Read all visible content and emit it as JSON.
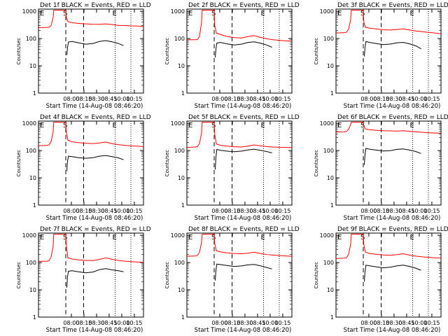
{
  "page": {
    "background": "#ffffff",
    "axis_color": "#000000"
  },
  "shared": {
    "xlabel": "Start Time (14-Aug-08 08:46:20)",
    "ylabel": "Counts/sec",
    "x_tick_labels": [
      "08:00",
      "08:15",
      "08:30",
      "08:45",
      "10:00",
      "10:15"
    ],
    "y_tick_labels": [
      "1",
      "10",
      "100",
      "1000"
    ],
    "marker_s": "S",
    "marker_e": "E",
    "y_scale": "log",
    "ylim": [
      1,
      1200
    ],
    "xlim": [
      0,
      100
    ],
    "red_color": "#ff0000",
    "black_color": "#000000"
  },
  "chart_data": [
    {
      "type": "line",
      "title": "Det 1f BLACK = Events, RED = LLD",
      "series": [
        {
          "color": "#ff0000",
          "x": [
            0,
            8,
            10,
            12,
            14,
            14.5,
            26,
            26.5,
            28,
            32,
            38,
            45,
            52,
            58,
            64,
            70,
            76,
            82,
            88,
            94,
            100
          ],
          "y": [
            250,
            255,
            260,
            300,
            600,
            1100,
            1100,
            600,
            420,
            380,
            360,
            345,
            335,
            330,
            345,
            325,
            305,
            300,
            290,
            285,
            275
          ]
        },
        {
          "color": "#000000",
          "x": [
            27,
            27.6,
            28.5,
            32,
            38,
            45,
            52,
            58,
            64,
            70,
            76,
            81
          ],
          "y": [
            25,
            45,
            75,
            78,
            70,
            62,
            66,
            78,
            84,
            76,
            66,
            55
          ]
        }
      ]
    },
    {
      "type": "line",
      "title": "Det 2f BLACK = Events, RED = LLD",
      "series": [
        {
          "color": "#ff0000",
          "x": [
            0,
            8,
            10,
            12,
            14,
            14.5,
            26,
            26.5,
            28,
            32,
            38,
            45,
            52,
            58,
            64,
            70,
            76,
            82,
            88,
            94,
            100
          ],
          "y": [
            90,
            90,
            92,
            120,
            400,
            1100,
            1100,
            300,
            160,
            140,
            120,
            108,
            105,
            118,
            128,
            110,
            98,
            90,
            86,
            82,
            80
          ]
        },
        {
          "color": "#000000",
          "x": [
            27,
            27.6,
            28.5,
            32,
            38,
            45,
            52,
            58,
            64,
            70,
            76,
            81
          ],
          "y": [
            20,
            40,
            68,
            72,
            64,
            58,
            62,
            72,
            76,
            68,
            58,
            48
          ]
        }
      ]
    },
    {
      "type": "line",
      "title": "Det 3f BLACK = Events, RED = LLD",
      "series": [
        {
          "color": "#ff0000",
          "x": [
            0,
            8,
            10,
            12,
            14,
            14.5,
            26,
            26.5,
            28,
            32,
            38,
            45,
            52,
            58,
            64,
            70,
            76,
            82,
            88,
            94,
            100
          ],
          "y": [
            160,
            165,
            170,
            220,
            500,
            1100,
            1100,
            400,
            260,
            240,
            225,
            210,
            205,
            215,
            225,
            205,
            190,
            178,
            168,
            160,
            150
          ]
        },
        {
          "color": "#000000",
          "x": [
            27,
            27.6,
            28.5,
            32,
            38,
            45,
            52,
            58,
            64,
            70,
            76,
            81
          ],
          "y": [
            22,
            45,
            78,
            72,
            66,
            60,
            63,
            70,
            72,
            64,
            54,
            42
          ]
        }
      ]
    },
    {
      "type": "line",
      "title": "Det 4f BLACK = Events, RED = LLD",
      "series": [
        {
          "color": "#ff0000",
          "x": [
            0,
            8,
            10,
            12,
            14,
            14.5,
            26,
            26.5,
            28,
            32,
            38,
            45,
            52,
            58,
            64,
            70,
            76,
            82,
            88,
            94,
            100
          ],
          "y": [
            150,
            155,
            160,
            210,
            500,
            1100,
            1100,
            500,
            240,
            210,
            195,
            185,
            180,
            190,
            205,
            180,
            165,
            155,
            148,
            145,
            140
          ]
        },
        {
          "color": "#000000",
          "x": [
            27,
            27.6,
            28.5,
            32,
            38,
            45,
            52,
            58,
            64,
            70,
            76,
            81
          ],
          "y": [
            18,
            40,
            62,
            60,
            55,
            52,
            55,
            62,
            66,
            60,
            54,
            46
          ]
        }
      ]
    },
    {
      "type": "line",
      "title": "Det 5f BLACK = Events, RED = LLD",
      "series": [
        {
          "color": "#ff0000",
          "x": [
            0,
            8,
            10,
            12,
            14,
            14.5,
            26,
            26.5,
            28,
            32,
            38,
            45,
            52,
            58,
            64,
            70,
            76,
            82,
            88,
            94,
            100
          ],
          "y": [
            130,
            135,
            140,
            180,
            450,
            1100,
            1100,
            400,
            175,
            155,
            145,
            138,
            135,
            145,
            160,
            150,
            140,
            135,
            132,
            130,
            128
          ]
        },
        {
          "color": "#000000",
          "x": [
            27,
            27.6,
            28.5,
            32,
            38,
            45,
            52,
            58,
            64,
            70,
            76,
            81
          ],
          "y": [
            20,
            55,
            110,
            102,
            95,
            90,
            95,
            105,
            112,
            102,
            92,
            82
          ]
        }
      ]
    },
    {
      "type": "line",
      "title": "Det 6f BLACK = Events, RED = LLD",
      "series": [
        {
          "color": "#ff0000",
          "x": [
            0,
            8,
            10,
            12,
            14,
            14.5,
            26,
            26.5,
            28,
            32,
            38,
            45,
            52,
            58,
            64,
            70,
            76,
            82,
            88,
            94,
            100
          ],
          "y": [
            480,
            490,
            500,
            600,
            900,
            1100,
            1100,
            800,
            620,
            580,
            555,
            535,
            525,
            520,
            530,
            505,
            485,
            465,
            450,
            440,
            430
          ]
        },
        {
          "color": "#000000",
          "x": [
            27,
            27.6,
            28.5,
            32,
            38,
            45,
            52,
            58,
            64,
            70,
            76,
            81
          ],
          "y": [
            30,
            70,
            120,
            112,
            104,
            96,
            100,
            110,
            114,
            104,
            92,
            78
          ]
        }
      ]
    },
    {
      "type": "line",
      "title": "Det 7f BLACK = Events, RED = LLD",
      "series": [
        {
          "color": "#ff0000",
          "x": [
            0,
            8,
            10,
            12,
            14,
            14.5,
            26,
            26.5,
            28,
            32,
            38,
            45,
            52,
            58,
            64,
            70,
            76,
            82,
            88,
            94,
            100
          ],
          "y": [
            110,
            112,
            115,
            160,
            400,
            1100,
            1100,
            400,
            150,
            135,
            125,
            120,
            118,
            130,
            148,
            132,
            120,
            112,
            108,
            105,
            102
          ]
        },
        {
          "color": "#000000",
          "x": [
            27,
            27.6,
            28.5,
            32,
            38,
            45,
            52,
            58,
            64,
            70,
            76,
            81
          ],
          "y": [
            12,
            30,
            48,
            50,
            46,
            42,
            45,
            55,
            60,
            54,
            50,
            46
          ]
        }
      ]
    },
    {
      "type": "line",
      "title": "Det 8f BLACK = Events, RED = LLD",
      "series": [
        {
          "color": "#ff0000",
          "x": [
            0,
            8,
            10,
            12,
            14,
            14.5,
            26,
            26.5,
            28,
            32,
            38,
            45,
            52,
            58,
            64,
            70,
            76,
            82,
            88,
            94,
            100
          ],
          "y": [
            170,
            175,
            180,
            240,
            550,
            1100,
            1100,
            500,
            270,
            245,
            228,
            215,
            210,
            222,
            238,
            215,
            198,
            188,
            180,
            175,
            170
          ]
        },
        {
          "color": "#000000",
          "x": [
            27,
            27.6,
            28.5,
            32,
            38,
            45,
            52,
            58,
            64,
            70,
            76,
            81
          ],
          "y": [
            22,
            50,
            88,
            84,
            78,
            72,
            75,
            82,
            85,
            76,
            66,
            58
          ]
        }
      ]
    },
    {
      "type": "line",
      "title": "Det 9f BLACK = Events, RED = LLD",
      "series": [
        {
          "color": "#ff0000",
          "x": [
            0,
            8,
            10,
            12,
            14,
            14.5,
            26,
            26.5,
            28,
            32,
            38,
            45,
            52,
            58,
            64,
            70,
            76,
            82,
            88,
            94,
            100
          ],
          "y": [
            140,
            145,
            150,
            200,
            480,
            1100,
            1100,
            450,
            240,
            215,
            200,
            190,
            185,
            195,
            210,
            188,
            172,
            162,
            155,
            150,
            145
          ]
        },
        {
          "color": "#000000",
          "x": [
            27,
            27.6,
            28.5,
            32,
            38,
            45,
            52,
            58,
            64,
            70,
            76,
            81
          ],
          "y": [
            20,
            45,
            80,
            76,
            70,
            64,
            68,
            76,
            80,
            72,
            62,
            52
          ]
        }
      ]
    }
  ]
}
